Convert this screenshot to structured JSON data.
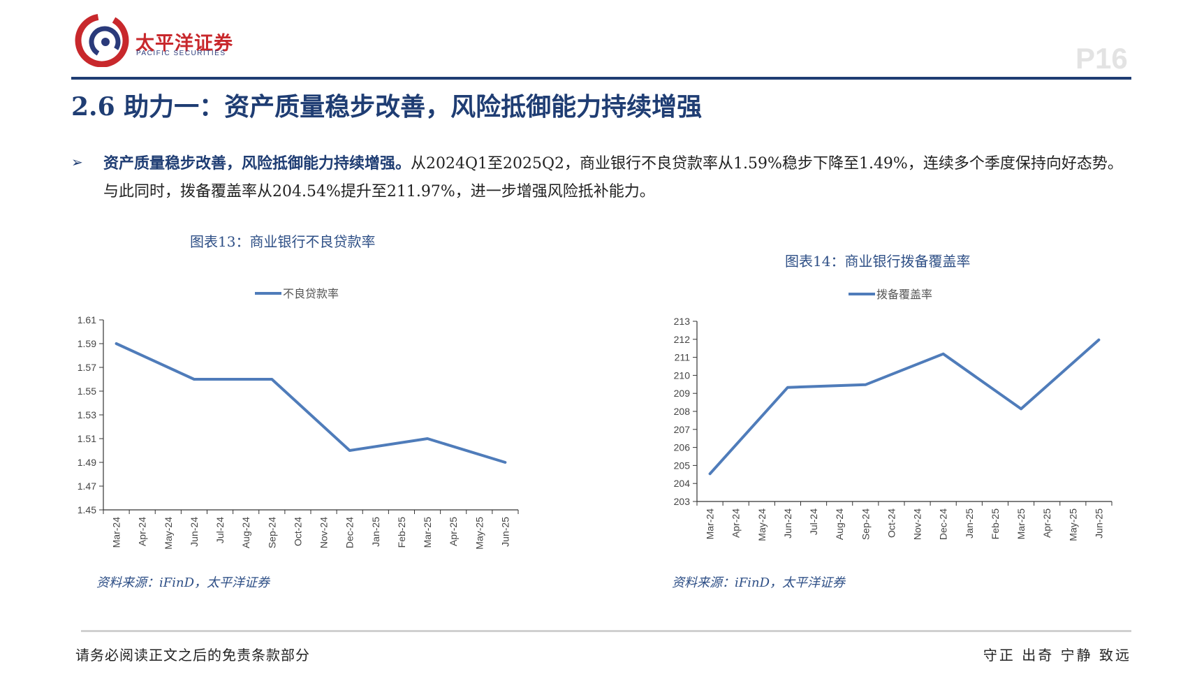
{
  "header": {
    "brand_cn": "太平洋证券",
    "brand_en": "PACIFIC SECURITIES",
    "page_number": "P16",
    "brand_color": "#c8282c",
    "accent_color": "#1f3d73"
  },
  "section_title": "2.6 助力一：资产质量稳步改善，风险抵御能力持续增强",
  "bullet_symbol": "➢",
  "paragraph": {
    "highlight": "资产质量稳步改善，风险抵御能力持续增强。",
    "text": "从2024Q1至2025Q2，商业银行不良贷款率从1.59%稳步下降至1.49%，连续多个季度保持向好态势。与此同时，拨备覆盖率从204.54%提升至211.97%，进一步增强风险抵补能力。"
  },
  "charts": {
    "left_title": "图表13：商业银行不良贷款率",
    "right_title": "图表14：商业银行拨备覆盖率",
    "left_source": "资料来源：iFinD，太平洋证券",
    "right_source": "资料来源：iFinD，太平洋证券"
  },
  "chart_data": [
    {
      "type": "line",
      "legend_position": "top",
      "grid": false,
      "categories": [
        "Mar-24",
        "Apr-24",
        "May-24",
        "Jun-24",
        "Jul-24",
        "Aug-24",
        "Sep-24",
        "Oct-24",
        "Nov-24",
        "Dec-24",
        "Jan-25",
        "Feb-25",
        "Mar-25",
        "Apr-25",
        "May-25",
        "Jun-25"
      ],
      "yticks": [
        "1.61",
        "1.59",
        "1.57",
        "1.55",
        "1.53",
        "1.51",
        "1.49",
        "1.47",
        "1.45"
      ],
      "ylim": [
        1.45,
        1.61
      ],
      "series": [
        {
          "name": "不良贷款率",
          "color": "#4f7cba",
          "points": [
            [
              0,
              1.59
            ],
            [
              3,
              1.56
            ],
            [
              6,
              1.56
            ],
            [
              9,
              1.5
            ],
            [
              12,
              1.51
            ],
            [
              15,
              1.49
            ]
          ]
        }
      ]
    },
    {
      "type": "line",
      "legend_position": "top",
      "grid": false,
      "categories": [
        "Mar-24",
        "Apr-24",
        "May-24",
        "Jun-24",
        "Jul-24",
        "Aug-24",
        "Sep-24",
        "Oct-24",
        "Nov-24",
        "Dec-24",
        "Jan-25",
        "Feb-25",
        "Mar-25",
        "Apr-25",
        "May-25",
        "Jun-25"
      ],
      "yticks": [
        "213",
        "212",
        "211",
        "210",
        "209",
        "208",
        "207",
        "206",
        "205",
        "204",
        "203"
      ],
      "ylim": [
        203,
        213
      ],
      "series": [
        {
          "name": "拨备覆盖率",
          "color": "#4f7cba",
          "points": [
            [
              0,
              204.54
            ],
            [
              3,
              209.33
            ],
            [
              6,
              209.48
            ],
            [
              9,
              211.19
            ],
            [
              12,
              208.14
            ],
            [
              15,
              211.97
            ]
          ]
        }
      ]
    }
  ],
  "footer": {
    "disclaimer": "请务必阅读正文之后的免责条款部分",
    "slogan": "守正 出奇 宁静 致远"
  }
}
